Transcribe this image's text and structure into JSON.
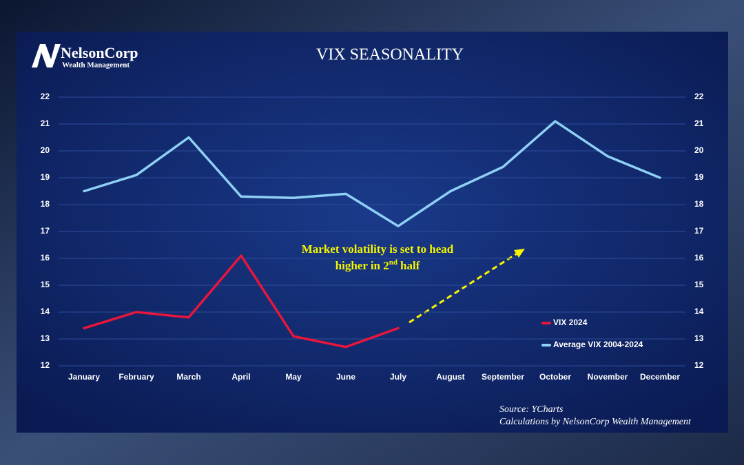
{
  "logo": {
    "name": "NelsonCorp",
    "tagline": "Wealth Management"
  },
  "chart_data": {
    "type": "line",
    "title": "VIX SEASONALITY",
    "categories": [
      "January",
      "February",
      "March",
      "April",
      "May",
      "June",
      "July",
      "August",
      "September",
      "October",
      "November",
      "December"
    ],
    "series": [
      {
        "name": "VIX 2024",
        "color": "#e8163c",
        "values": [
          13.4,
          14.0,
          13.8,
          16.1,
          13.1,
          12.7,
          13.4,
          null,
          null,
          null,
          null,
          null
        ]
      },
      {
        "name": "Average VIX 2004-2024",
        "color": "#8fd0f5",
        "values": [
          18.5,
          19.1,
          20.5,
          18.3,
          18.25,
          18.4,
          17.2,
          18.5,
          19.4,
          21.1,
          19.8,
          19.0
        ]
      }
    ],
    "ylim": [
      12,
      22
    ],
    "yticks": [
      12,
      13,
      14,
      15,
      16,
      17,
      18,
      19,
      20,
      21,
      22
    ],
    "y2lim": [
      12,
      22
    ],
    "y2ticks": [
      12,
      13,
      14,
      15,
      16,
      17,
      18,
      19,
      20,
      21,
      22
    ],
    "grid": true,
    "legend": "right",
    "annotation": {
      "line1": "Market volatility is set to head",
      "line2": "higher in 2",
      "superscript": "nd",
      "line2_end": "half"
    },
    "source": [
      "Source: YCharts",
      "Calculations by NelsonCorp Wealth Management"
    ]
  }
}
